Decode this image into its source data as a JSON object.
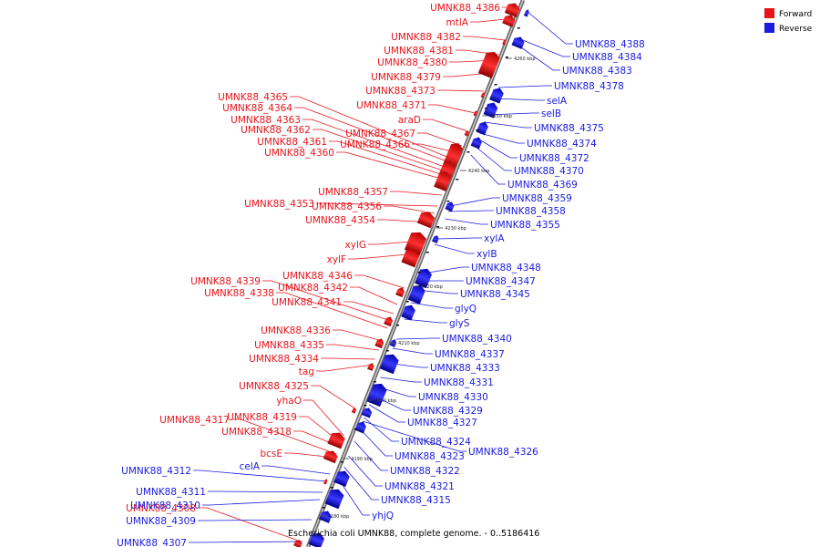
{
  "legend": {
    "forward_label": "Forward",
    "reverse_label": "Reverse",
    "forward_color": "#e8141c",
    "reverse_color": "#1a1ae0"
  },
  "caption": "Escherichia coli UMNK88, complete genome. - 0..5186416",
  "ticks": [
    "4180 kbp",
    "4190 kbp",
    "4200 kbp",
    "4210 kbp",
    "4220 kbp",
    "4230 kbp",
    "4240 kbp",
    "4250 kbp",
    "4260 kbp"
  ],
  "forward_labels": [
    "UMNK88_4386",
    "mtlA",
    "UMNK88_4382",
    "UMNK88_4381",
    "UMNK88_4380",
    "UMNK88_4379",
    "UMNK88_4373",
    "UMNK88_4371",
    "araD",
    "UMNK88_4365",
    "UMNK88_4364",
    "UMNK88_4363",
    "UMNK88_4362",
    "UMNK88_4367",
    "UMNK88_4361",
    "UMNK88_4366",
    "UMNK88_4360",
    "UMNK88_4357",
    "UMNK88_4353",
    "UMNK88_4356",
    "UMNK88_4354",
    "xylG",
    "xylF",
    "UMNK88_4346",
    "UMNK88_4339",
    "UMNK88_4342",
    "UMNK88_4338",
    "UMNK88_4341",
    "UMNK88_4336",
    "UMNK88_4335",
    "UMNK88_4334",
    "tag",
    "UMNK88_4325",
    "yhaO",
    "UMNK88_4319",
    "UMNK88_4317",
    "UMNK88_4318",
    "bcsE",
    "UMNK88_4308"
  ],
  "reverse_labels": [
    "UMNK88_4388",
    "UMNK88_4384",
    "UMNK88_4383",
    "UMNK88_4378",
    "selA",
    "selB",
    "UMNK88_4375",
    "UMNK88_4374",
    "UMNK88_4372",
    "UMNK88_4370",
    "UMNK88_4369",
    "UMNK88_4359",
    "UMNK88_4358",
    "UMNK88_4355",
    "xylA",
    "xylB",
    "UMNK88_4348",
    "UMNK88_4347",
    "UMNK88_4345",
    "glyQ",
    "glyS",
    "UMNK88_4340",
    "UMNK88_4337",
    "UMNK88_4333",
    "UMNK88_4331",
    "UMNK88_4330",
    "UMNK88_4329",
    "UMNK88_4327",
    "UMNK88_4324",
    "UMNK88_4326",
    "UMNK88_4323",
    "UMNK88_4322",
    "UMNK88_4312",
    "celA",
    "UMNK88_4321",
    "UMNK88_4311",
    "UMNK88_4315",
    "UMNK88_4310",
    "yhjQ",
    "UMNK88_4309",
    "UMNK88_4307"
  ]
}
